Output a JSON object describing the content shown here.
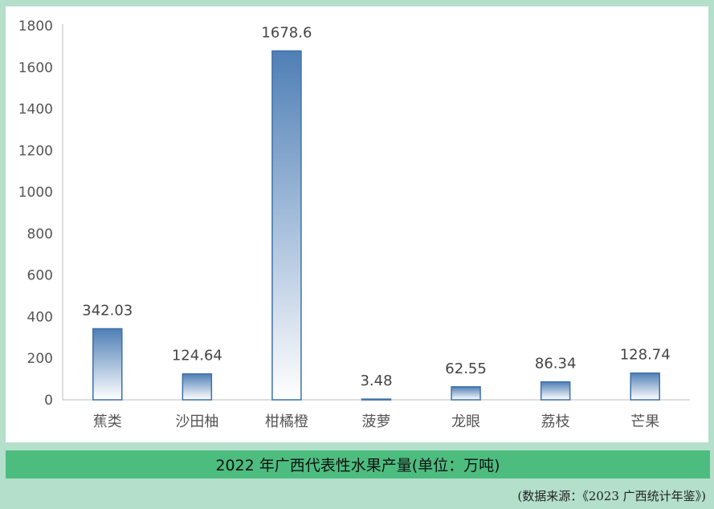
{
  "chart_data": {
    "type": "bar",
    "categories": [
      "蕉类",
      "沙田柚",
      "柑橘橙",
      "菠萝",
      "龙眼",
      "荔枝",
      "芒果"
    ],
    "values": [
      342.03,
      124.64,
      1678.6,
      3.48,
      62.55,
      86.34,
      128.74
    ],
    "data_labels": [
      "342.03",
      "124.64",
      "1678.6",
      "3.48",
      "62.55",
      "86.34",
      "128.74"
    ],
    "yticks": [
      "0",
      "200",
      "400",
      "600",
      "800",
      "1000",
      "1200",
      "1400",
      "1600",
      "1800"
    ],
    "ylim": [
      0,
      1800
    ],
    "grid": false,
    "title": "",
    "xlabel": "",
    "ylabel": "",
    "bar_color_top": "#4f7fb6",
    "bar_color_bottom": "#ffffff",
    "bar_edge_color": "#3f6fa8"
  },
  "caption": "2022 年广西代表性水果产量(单位：万吨)",
  "source": "(数据来源：《2023 广西统计年鉴》)",
  "colors": {
    "background": "#b3dfcb",
    "caption_band": "#4dbd7f",
    "panel": "#ffffff"
  }
}
